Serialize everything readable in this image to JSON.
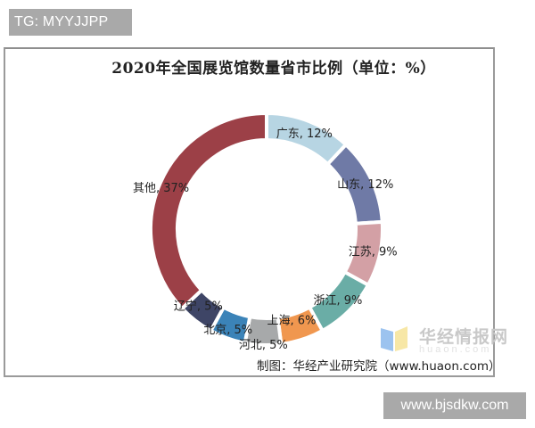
{
  "badges": {
    "top_left": "TG: MYYJJPP",
    "bottom_right": "www.bjsdkw.com"
  },
  "watermark": {
    "brand": "华经情报网",
    "sub": "huaon.com"
  },
  "source": "制图：华经产业研究院（www.huaon.com）",
  "chart_data": {
    "type": "pie",
    "variant": "donut",
    "title": "2020年全国展览馆数量省市比例（单位：%）",
    "unit": "%",
    "start_angle_deg": 0,
    "direction": "clockwise",
    "categories": [
      "广东",
      "山东",
      "江苏",
      "浙江",
      "上海",
      "河北",
      "北京",
      "辽宁",
      "其他"
    ],
    "values": [
      12,
      12,
      9,
      9,
      6,
      5,
      5,
      5,
      37
    ],
    "labels": [
      "广东, 12%",
      "山东, 12%",
      "江苏, 9%",
      "浙江, 9%",
      "上海, 6%",
      "河北, 5%",
      "北京, 5%",
      "辽宁, 5%",
      "其他, 37%"
    ],
    "colors": [
      "#b7d5e3",
      "#6f7aa6",
      "#d3a0a5",
      "#6aada6",
      "#f0974f",
      "#a7a9aa",
      "#3b83b8",
      "#3e4566",
      "#9c4047"
    ],
    "legend": "none (data labels on slices)",
    "grid": false
  }
}
